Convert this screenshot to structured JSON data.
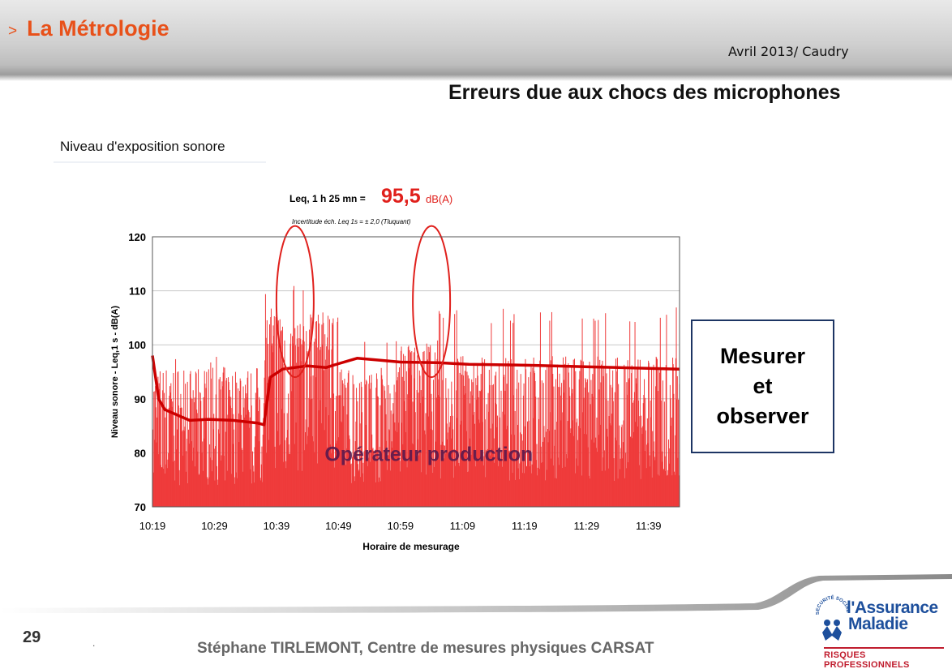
{
  "header": {
    "chevron": ">",
    "section_title": "La Métrologie",
    "date_place": "Avril 2013/ Caudry"
  },
  "slide_title": "Erreurs due aux chocs des microphones",
  "chart_caption": "Niveau d'exposition sonore",
  "chart_data": {
    "type": "bar",
    "subtype": "bar+line",
    "leq_prefix": "Leq, 1 h 25 mn =",
    "leq_value": "95,5",
    "leq_unit": "dB(A)",
    "uncertainty_note": "Incertitude éch. Leq 1s = ± 2,0 (Tluquant)",
    "ylabel": "Niveau sonore - Leq,1 s - dB(A)",
    "xlabel": "Horaire de mesurage",
    "ylim": [
      70,
      120
    ],
    "yticks": [
      120,
      110,
      100,
      90,
      80,
      70
    ],
    "x_tick_labels": [
      "10:19",
      "10:29",
      "10:39",
      "10:49",
      "10:59",
      "11:09",
      "11:19",
      "11:29",
      "11:39"
    ],
    "x_start_time": "10:19",
    "x_end_time": "11:44",
    "grid": true,
    "bar_color": "#ef3b3b",
    "line_color": "#cc0000",
    "cumulative_leq_line": {
      "times": [
        "10:19",
        "10:20",
        "10:21",
        "10:23",
        "10:25",
        "10:28",
        "10:32",
        "10:36",
        "10:37",
        "10:38",
        "10:40",
        "10:44",
        "10:47",
        "10:49",
        "10:52",
        "10:55",
        "10:59",
        "11:05",
        "11:10",
        "11:20",
        "11:30",
        "11:44"
      ],
      "values": [
        98,
        90,
        88,
        87,
        86,
        86.2,
        86,
        85.5,
        85.2,
        94,
        95.5,
        96.1,
        95.8,
        96.5,
        97.5,
        97.2,
        96.8,
        96.7,
        96.4,
        96.2,
        95.9,
        95.5
      ]
    },
    "bar_segments": [
      {
        "from": "10:19",
        "to": "10:37",
        "base": 86,
        "spread": 10,
        "peak": 98
      },
      {
        "from": "10:37",
        "to": "10:40",
        "base": 97,
        "spread": 10,
        "peak": 110
      },
      {
        "from": "10:40",
        "to": "10:44",
        "base": 95,
        "spread": 9,
        "peak": 111
      },
      {
        "from": "10:44",
        "to": "10:49",
        "base": 99,
        "spread": 7,
        "peak": 107
      },
      {
        "from": "10:49",
        "to": "10:58",
        "base": 87,
        "spread": 9,
        "peak": 101
      },
      {
        "from": "10:58",
        "to": "11:05",
        "base": 93,
        "spread": 8,
        "peak": 111
      },
      {
        "from": "11:05",
        "to": "11:44",
        "base": 89,
        "spread": 9,
        "peak": 107
      }
    ],
    "annotations": [
      "Opérateur production"
    ],
    "highlight_ellipses": [
      {
        "center_time": "10:42",
        "y_low": 94,
        "y_high": 122
      },
      {
        "center_time": "11:04",
        "y_low": 94,
        "y_high": 122
      }
    ]
  },
  "observe_box": {
    "line1": "Mesurer",
    "line2": "et",
    "line3": "observer"
  },
  "footer": {
    "page_number": "29",
    "dot": ".",
    "credit": "Stéphane TIRLEMONT, Centre de mesures physiques CARSAT"
  },
  "logo": {
    "emblem_text": "SÉCURITÉ SOCIALE",
    "name_line1": "l'Assurance",
    "name_line2": "Maladie",
    "tagline": "RISQUES PROFESSIONNELS",
    "blue": "#1d4f9c",
    "red": "#c01d2e"
  },
  "colors": {
    "accent": "#e8511a",
    "box_border": "#1d3564",
    "annotation": "#5a1a4e"
  }
}
